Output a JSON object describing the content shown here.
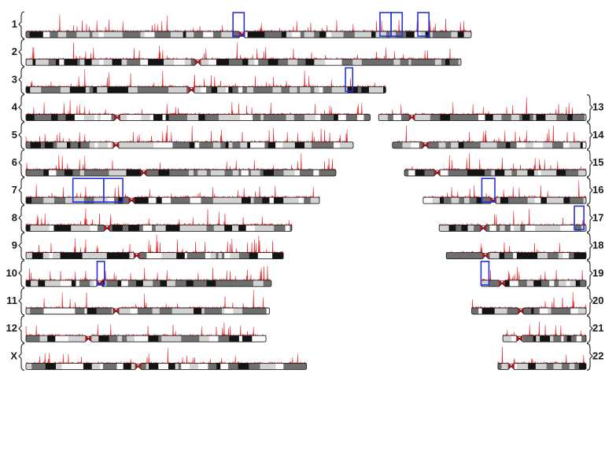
{
  "colors": {
    "track": "#e8191f",
    "highlight_box": "#2332d8",
    "centromere": "#c9141b",
    "band_dark": "#141414",
    "band_mid": "#6e6e6e",
    "band_light": "#d2d2d2",
    "band_white": "#fafafa",
    "outline": "#222222"
  },
  "chromosomes": [
    {
      "label": "1",
      "side": "left",
      "row": 0,
      "len": 1.0,
      "cen": 0.485,
      "boxes": [
        [
          0.465,
          0.49
        ],
        [
          0.795,
          0.82
        ],
        [
          0.82,
          0.845
        ],
        [
          0.88,
          0.905
        ]
      ]
    },
    {
      "label": "2",
      "side": "left",
      "row": 1,
      "len": 0.977,
      "cen": 0.395,
      "boxes": []
    },
    {
      "label": "3",
      "side": "left",
      "row": 2,
      "len": 0.808,
      "cen": 0.46,
      "boxes": [
        [
          0.888,
          0.908
        ]
      ]
    },
    {
      "label": "4",
      "side": "left",
      "row": 3,
      "len": 0.773,
      "cen": 0.265,
      "boxes": []
    },
    {
      "label": "5",
      "side": "left",
      "row": 4,
      "len": 0.735,
      "cen": 0.275,
      "boxes": []
    },
    {
      "label": "6",
      "side": "left",
      "row": 5,
      "len": 0.696,
      "cen": 0.38,
      "boxes": []
    },
    {
      "label": "7",
      "side": "left",
      "row": 6,
      "len": 0.659,
      "cen": 0.36,
      "boxes": [
        [
          0.16,
          0.265
        ],
        [
          0.265,
          0.33
        ]
      ]
    },
    {
      "label": "8",
      "side": "left",
      "row": 7,
      "len": 0.597,
      "cen": 0.305,
      "boxes": []
    },
    {
      "label": "9",
      "side": "left",
      "row": 8,
      "len": 0.578,
      "cen": 0.43,
      "boxes": []
    },
    {
      "label": "10",
      "side": "left",
      "row": 9,
      "len": 0.551,
      "cen": 0.3,
      "boxes": [
        [
          0.29,
          0.32
        ]
      ]
    },
    {
      "label": "11",
      "side": "left",
      "row": 10,
      "len": 0.547,
      "cen": 0.37,
      "boxes": []
    },
    {
      "label": "12",
      "side": "left",
      "row": 11,
      "len": 0.539,
      "cen": 0.26,
      "boxes": []
    },
    {
      "label": "X",
      "side": "left",
      "row": 12,
      "len": 0.63,
      "cen": 0.4,
      "boxes": []
    },
    {
      "label": "13",
      "side": "right",
      "row": 3,
      "len": 0.466,
      "cen": 0.16,
      "boxes": []
    },
    {
      "label": "14",
      "side": "right",
      "row": 4,
      "len": 0.435,
      "cen": 0.17,
      "boxes": []
    },
    {
      "label": "15",
      "side": "right",
      "row": 5,
      "len": 0.408,
      "cen": 0.18,
      "boxes": []
    },
    {
      "label": "16",
      "side": "right",
      "row": 6,
      "len": 0.366,
      "cen": 0.43,
      "boxes": [
        [
          0.36,
          0.44
        ]
      ]
    },
    {
      "label": "17",
      "side": "right",
      "row": 7,
      "len": 0.33,
      "cen": 0.3,
      "boxes": [
        [
          0.92,
          0.985
        ]
      ]
    },
    {
      "label": "18",
      "side": "right",
      "row": 8,
      "len": 0.314,
      "cen": 0.28,
      "boxes": []
    },
    {
      "label": "19",
      "side": "right",
      "row": 9,
      "len": 0.236,
      "cen": 0.2,
      "boxes": [
        [
          0.0,
          0.075
        ]
      ]
    },
    {
      "label": "20",
      "side": "right",
      "row": 10,
      "len": 0.257,
      "cen": 0.43,
      "boxes": []
    },
    {
      "label": "21",
      "side": "right",
      "row": 11,
      "len": 0.187,
      "cen": 0.2,
      "boxes": []
    },
    {
      "label": "22",
      "side": "right",
      "row": 12,
      "len": 0.198,
      "cen": 0.15,
      "boxes": []
    }
  ]
}
